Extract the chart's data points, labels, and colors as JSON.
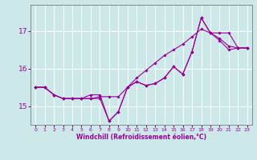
{
  "xlabel": "Windchill (Refroidissement éolien,°C)",
  "background_color": "#cce8e8",
  "line_color": "#990099",
  "grid_color": "#ffffff",
  "x": [
    0,
    1,
    2,
    3,
    4,
    5,
    6,
    7,
    8,
    9,
    10,
    11,
    12,
    13,
    14,
    15,
    16,
    17,
    18,
    19,
    20,
    21,
    22,
    23
  ],
  "line1": [
    15.5,
    15.5,
    15.3,
    15.2,
    15.2,
    15.2,
    15.2,
    15.2,
    14.6,
    14.85,
    15.5,
    15.65,
    15.55,
    15.6,
    15.75,
    16.05,
    15.85,
    16.45,
    17.35,
    16.95,
    16.75,
    16.5,
    16.55,
    16.55
  ],
  "line2": [
    15.5,
    15.5,
    15.3,
    15.2,
    15.2,
    15.2,
    15.2,
    15.25,
    15.25,
    15.25,
    15.5,
    15.75,
    15.95,
    16.15,
    16.35,
    16.5,
    16.65,
    16.85,
    17.05,
    16.95,
    16.8,
    16.6,
    16.55,
    16.55
  ],
  "line3": [
    15.5,
    15.5,
    15.3,
    15.2,
    15.2,
    15.2,
    15.3,
    15.3,
    14.6,
    14.85,
    15.5,
    15.65,
    15.55,
    15.6,
    15.75,
    16.05,
    15.85,
    16.45,
    17.35,
    16.95,
    16.95,
    16.95,
    16.55,
    16.55
  ],
  "ylim": [
    14.5,
    17.7
  ],
  "xlim": [
    -0.5,
    23.5
  ],
  "yticks": [
    15,
    16,
    17
  ],
  "xticks": [
    0,
    1,
    2,
    3,
    4,
    5,
    6,
    7,
    8,
    9,
    10,
    11,
    12,
    13,
    14,
    15,
    16,
    17,
    18,
    19,
    20,
    21,
    22,
    23
  ]
}
